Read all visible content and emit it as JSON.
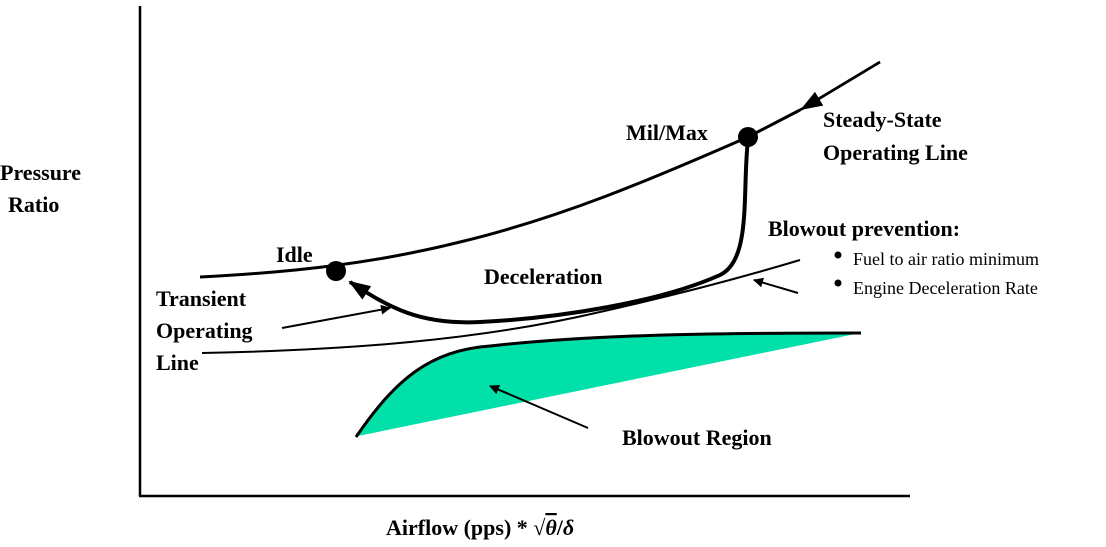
{
  "axes": {
    "y_label_line1": "Pressure",
    "y_label_line2": "Ratio",
    "x_label_main": "Airflow (pps) * ",
    "x_label_sqrt": "√",
    "x_label_theta": "θ",
    "x_label_slash": "/",
    "x_label_delta": "δ"
  },
  "labels": {
    "mil_max": "Mil/Max",
    "idle": "Idle",
    "deceleration": "Deceleration",
    "steady_state_line1": "Steady-State",
    "steady_state_line2": "Operating Line",
    "transient_line1": "Transient",
    "transient_line2": "Operating",
    "transient_line3": "Line",
    "blowout_region": "Blowout Region",
    "blowout_prevention": "Blowout prevention:",
    "bullet_1": "Fuel to air ratio minimum",
    "bullet_2": "Engine Deceleration Rate"
  },
  "colors": {
    "blowout_fill": "#00e0a8",
    "line": "#000000"
  }
}
